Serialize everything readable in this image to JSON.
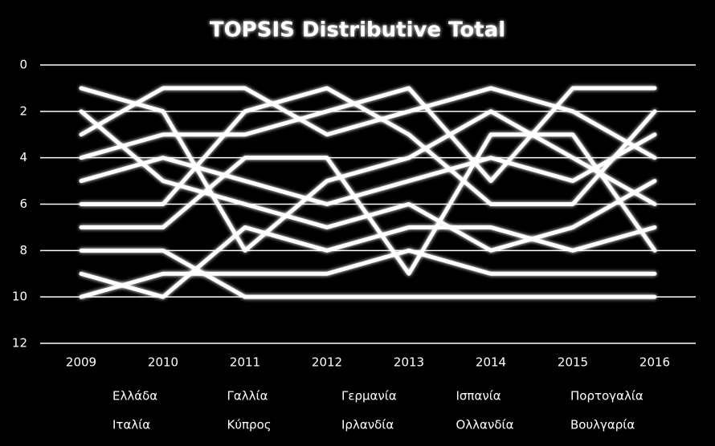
{
  "chart_data": {
    "type": "line",
    "title": "TOPSIS Distributive Total",
    "categories": [
      "2009",
      "2010",
      "2011",
      "2012",
      "2013",
      "2014",
      "2015",
      "2016"
    ],
    "ylim": [
      0,
      12
    ],
    "yticks": [
      0,
      2,
      4,
      6,
      8,
      10,
      12
    ],
    "y_inverted": true,
    "grid": true,
    "legend": "bottom",
    "series": [
      {
        "name": "Ελλάδα",
        "color": "#ffffff",
        "values": [
          1,
          2,
          8,
          5,
          4,
          2,
          4,
          6
        ]
      },
      {
        "name": "Γαλλία",
        "color": "#ffffff",
        "values": [
          2,
          5,
          6,
          7,
          6,
          8,
          7,
          5
        ]
      },
      {
        "name": "Γερμανία",
        "color": "#ffffff",
        "values": [
          3,
          1,
          1,
          3,
          2,
          1,
          2,
          4
        ]
      },
      {
        "name": "Ισπανία",
        "color": "#ffffff",
        "values": [
          4,
          3,
          3,
          2,
          1,
          5,
          1,
          1
        ]
      },
      {
        "name": "Πορτογαλία",
        "color": "#ffffff",
        "values": [
          5,
          4,
          5,
          6,
          5,
          4,
          5,
          3
        ]
      },
      {
        "name": "Ιταλία",
        "color": "#ffffff",
        "values": [
          6,
          6,
          2,
          1,
          3,
          6,
          6,
          2
        ]
      },
      {
        "name": "Κύπρος",
        "color": "#ffffff",
        "values": [
          7,
          7,
          4,
          4,
          9,
          3,
          3,
          8
        ]
      },
      {
        "name": "Ιρλανδία",
        "color": "#ffffff",
        "values": [
          8,
          8,
          10,
          10,
          10,
          10,
          10,
          10
        ]
      },
      {
        "name": "Ολλανδία",
        "color": "#ffffff",
        "values": [
          9,
          10,
          7,
          8,
          7,
          7,
          8,
          7
        ]
      },
      {
        "name": "Βουλγαρία",
        "color": "#ffffff",
        "values": [
          10,
          9,
          9,
          9,
          8,
          9,
          9,
          9
        ]
      }
    ]
  }
}
